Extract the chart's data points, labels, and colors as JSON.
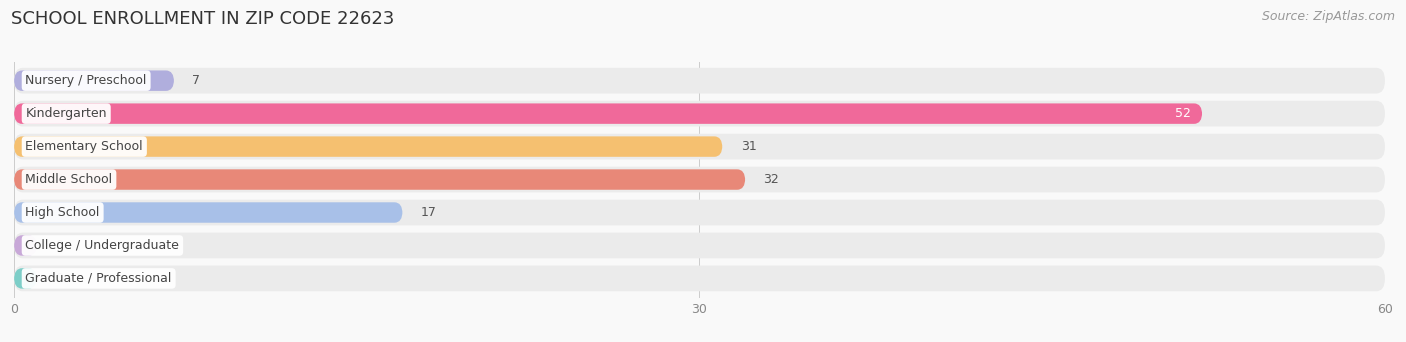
{
  "title": "SCHOOL ENROLLMENT IN ZIP CODE 22623",
  "source": "Source: ZipAtlas.com",
  "categories": [
    "Nursery / Preschool",
    "Kindergarten",
    "Elementary School",
    "Middle School",
    "High School",
    "College / Undergraduate",
    "Graduate / Professional"
  ],
  "values": [
    7,
    52,
    31,
    32,
    17,
    0,
    0
  ],
  "bar_colors": [
    "#b0aedd",
    "#f0699a",
    "#f5c070",
    "#e88878",
    "#a8c0e8",
    "#c8a8d8",
    "#7dcec8"
  ],
  "bar_bg_color": "#ebebeb",
  "label_text_color": "#444444",
  "value_color_inside": "#ffffff",
  "value_color_outside": "#555555",
  "xlim": [
    0,
    60
  ],
  "xticks": [
    0,
    30,
    60
  ],
  "title_fontsize": 13,
  "source_fontsize": 9,
  "label_fontsize": 9,
  "value_fontsize": 9,
  "background_color": "#f9f9f9",
  "inside_threshold": 45
}
